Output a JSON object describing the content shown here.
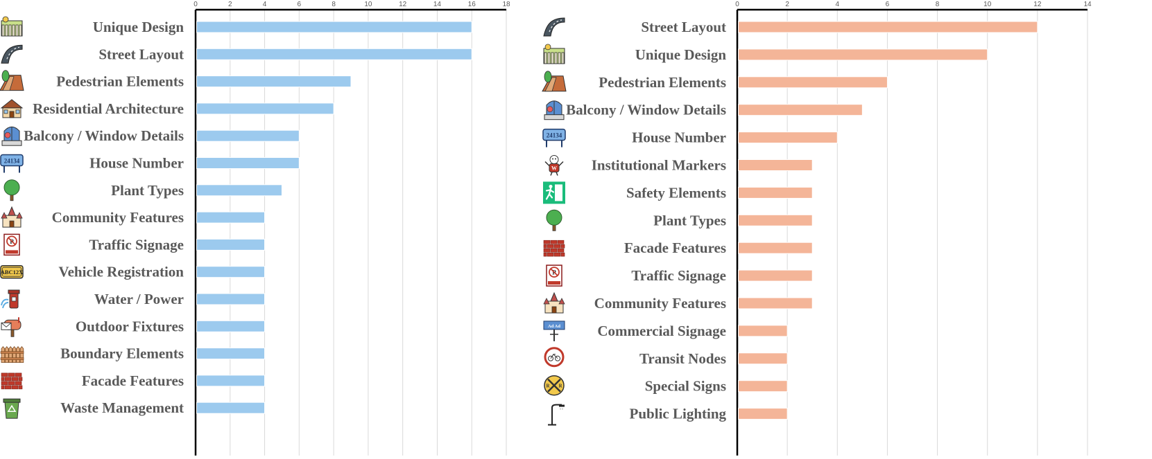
{
  "chart_data": [
    {
      "type": "bar",
      "orientation": "horizontal",
      "title": "",
      "xlabel": "",
      "ylabel": "",
      "xlim": [
        0,
        18
      ],
      "ticks": [
        "0",
        "2",
        "4",
        "6",
        "8",
        "10",
        "12",
        "14",
        "16",
        "18"
      ],
      "grid": true,
      "color": "#9ccaee",
      "categories": [
        "Unique Design",
        "Street Layout",
        "Pedestrian Elements",
        "Residential Architecture",
        "Balcony / Window Details",
        "House Number",
        "Plant Types",
        "Community Features",
        "Traffic Signage",
        "Vehicle Registration",
        "Water / Power",
        "Outdoor Fixtures",
        "Boundary Elements",
        "Facade Features",
        "Waste Management"
      ],
      "icons": [
        "picket-fence-house-icon",
        "curved-road-icon",
        "sidewalk-tree-icon",
        "house-icon",
        "window-balcony-icon",
        "house-number-plate-icon",
        "tree-icon",
        "church-icon",
        "no-parking-sign-icon",
        "license-plate-icon",
        "fire-hydrant-icon",
        "mailbox-icon",
        "fence-icon",
        "brick-wall-icon",
        "recycling-bin-icon"
      ],
      "values": [
        16,
        16,
        9,
        8,
        6,
        6,
        5,
        4,
        4,
        4,
        4,
        4,
        4,
        4,
        4
      ]
    },
    {
      "type": "bar",
      "orientation": "horizontal",
      "title": "",
      "xlabel": "",
      "ylabel": "",
      "xlim": [
        0,
        14
      ],
      "ticks": [
        "0",
        "2",
        "4",
        "6",
        "8",
        "10",
        "12",
        "14"
      ],
      "grid": true,
      "color": "#f4b598",
      "categories": [
        "Street Layout",
        "Unique Design",
        "Pedestrian Elements",
        "Balcony / Window Details",
        "House Number",
        "Institutional Markers",
        "Safety Elements",
        "Plant Types",
        "Facade Features",
        "Traffic Signage",
        "Community Features",
        "Commercial Signage",
        "Transit Nodes",
        "Special Signs",
        "Public Lighting"
      ],
      "icons": [
        "curved-road-icon",
        "picket-fence-house-icon",
        "sidewalk-tree-icon",
        "window-balcony-icon",
        "house-number-plate-icon",
        "mascot-icon",
        "emergency-exit-icon",
        "tree-icon",
        "brick-wall-icon",
        "no-parking-sign-icon",
        "church-icon",
        "billboard-icon",
        "bicycle-sign-icon",
        "railroad-crossing-icon",
        "street-lamp-icon"
      ],
      "values": [
        12,
        10,
        6,
        5,
        4,
        3,
        3,
        3,
        3,
        3,
        3,
        2,
        2,
        2,
        2
      ]
    }
  ]
}
